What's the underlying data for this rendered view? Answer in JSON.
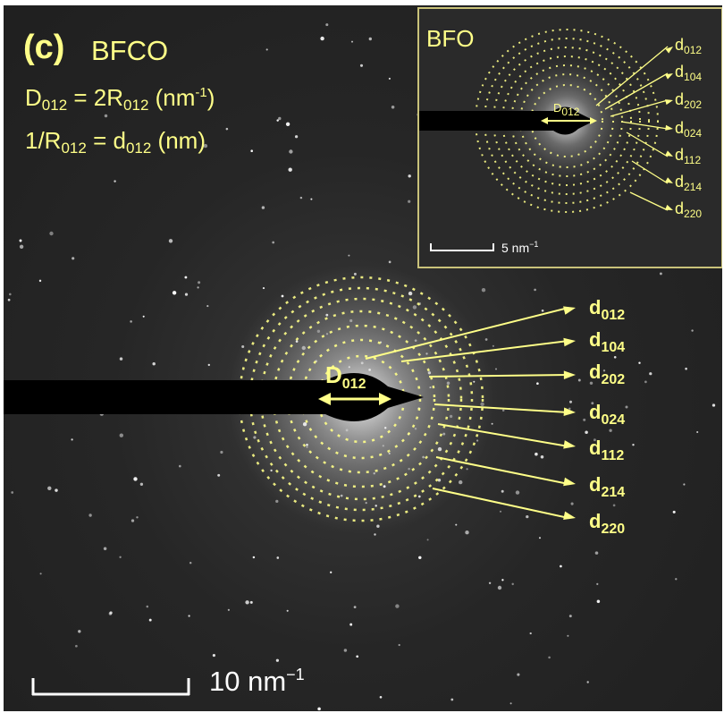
{
  "panel": {
    "label": "(c)",
    "material": "BFCO"
  },
  "equations": {
    "line1": {
      "D": "D",
      "D_sub": "012",
      "mid": " = 2R",
      "R_sub": "012",
      "unit": " (nm",
      "unit_sup": "-1",
      "close": ")"
    },
    "line2": {
      "a": "1/R",
      "a_sub": "012",
      "mid": " = d",
      "b_sub": "012",
      "unit": " (nm)"
    }
  },
  "main_pattern": {
    "beam_label": {
      "D": "D",
      "sub": "012"
    },
    "ring_labels": [
      {
        "d": "d",
        "sub": "012"
      },
      {
        "d": "d",
        "sub": "104"
      },
      {
        "d": "d",
        "sub": "202"
      },
      {
        "d": "d",
        "sub": "024"
      },
      {
        "d": "d",
        "sub": "112"
      },
      {
        "d": "d",
        "sub": "214"
      },
      {
        "d": "d",
        "sub": "220"
      }
    ],
    "scale_bar": {
      "value": "10 nm",
      "sup": "−1"
    }
  },
  "inset": {
    "title": "BFO",
    "beam_label": {
      "D": "D",
      "sub": "012"
    },
    "ring_labels": [
      {
        "d": "d",
        "sub": "012"
      },
      {
        "d": "d",
        "sub": "104"
      },
      {
        "d": "d",
        "sub": "202"
      },
      {
        "d": "d",
        "sub": "024"
      },
      {
        "d": "d",
        "sub": "112"
      },
      {
        "d": "d",
        "sub": "214"
      },
      {
        "d": "d",
        "sub": "220"
      }
    ],
    "scale_bar": {
      "value": "5 nm",
      "sup": "−1"
    }
  },
  "colors": {
    "annotation": "#ffff88",
    "scale": "#ffffff",
    "inset_border": "#c9c27a"
  }
}
